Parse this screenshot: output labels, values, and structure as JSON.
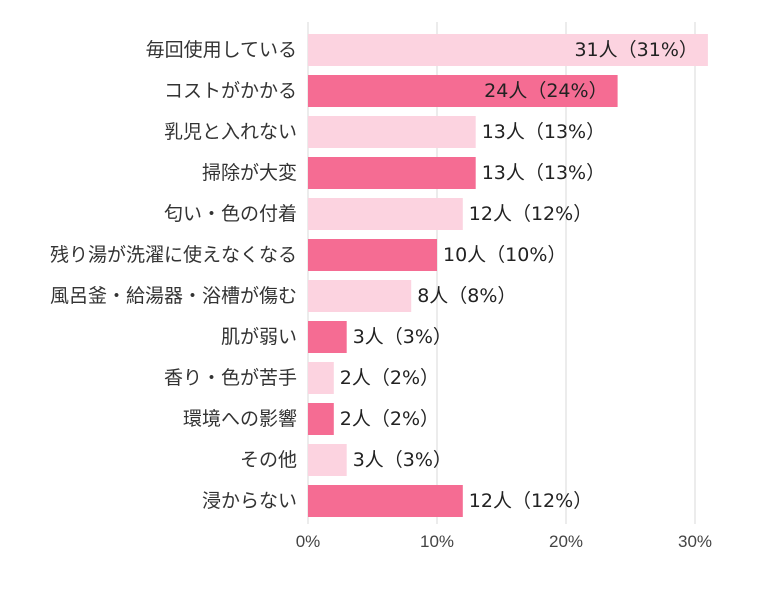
{
  "chart_data": {
    "type": "bar",
    "orientation": "horizontal",
    "title": "",
    "xlabel": "",
    "ylabel": "",
    "xlim": [
      0,
      31
    ],
    "x_ticks": [
      0,
      10,
      20,
      30
    ],
    "x_tick_labels": [
      "0%",
      "10%",
      "20%",
      "30%"
    ],
    "grid": true,
    "categories": [
      "毎回使用している",
      "コストがかかる",
      "乳児と入れない",
      "掃除が大変",
      "匂い・色の付着",
      "残り湯が洗濯に使えなくなる",
      "風呂釜・給湯器・浴槽が傷む",
      "肌が弱い",
      "香り・色が苦手",
      "環境への影響",
      "その他",
      "浸からない"
    ],
    "values": [
      31,
      24,
      13,
      13,
      12,
      10,
      8,
      3,
      2,
      2,
      3,
      12
    ],
    "data_labels": [
      "31人（31%）",
      "24人（24%）",
      "13人（13%）",
      "13人（13%）",
      "12人（12%）",
      "10人（10%）",
      "8人（8%）",
      "3人（3%）",
      "2人（2%）",
      "2人（2%）",
      "3人（3%）",
      "12人（12%）"
    ],
    "bar_colors": [
      "#fcd3e0",
      "#f56c93",
      "#fcd3e0",
      "#f56c93",
      "#fcd3e0",
      "#f56c93",
      "#fcd3e0",
      "#f56c93",
      "#fcd3e0",
      "#f56c93",
      "#fcd3e0",
      "#f56c93"
    ]
  }
}
